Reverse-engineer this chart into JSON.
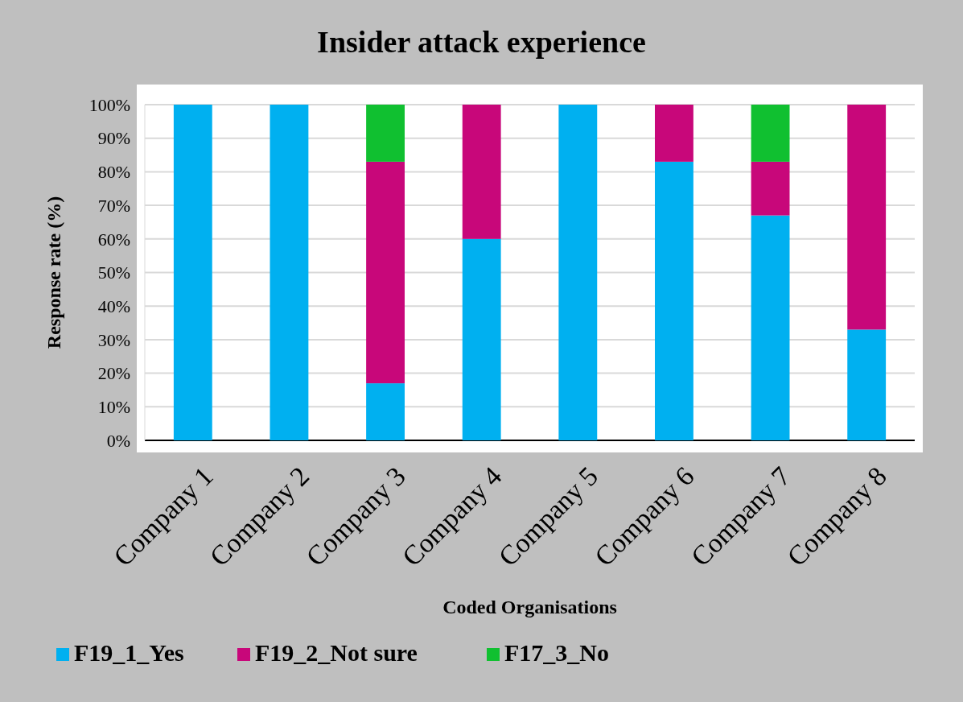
{
  "chart_data": {
    "type": "bar",
    "title": "Insider attack experience",
    "xlabel": "Coded Organisations",
    "ylabel": "Response rate (%)",
    "categories": [
      "Company 1",
      "Company 2",
      "Company 3",
      "Company 4",
      "Company 5",
      "Company 6",
      "Company 7",
      "Company 8"
    ],
    "stacked": true,
    "series": [
      {
        "name": "F19_1_Yes",
        "color": "#00b0f0",
        "values": [
          100,
          100,
          17,
          60,
          100,
          83,
          67,
          33
        ]
      },
      {
        "name": "F19_2_Not sure",
        "color": "#c8077a",
        "values": [
          0,
          0,
          66,
          40,
          0,
          17,
          16,
          67
        ]
      },
      {
        "name": "F17_3_No",
        "color": "#10c030",
        "values": [
          0,
          0,
          17,
          0,
          0,
          0,
          17,
          0
        ]
      }
    ],
    "ylim": [
      0,
      100
    ],
    "yticks": [
      {
        "value": 0,
        "label": "0%"
      },
      {
        "value": 10,
        "label": "10%"
      },
      {
        "value": 20,
        "label": "20%"
      },
      {
        "value": 30,
        "label": "30%"
      },
      {
        "value": 40,
        "label": "40%"
      },
      {
        "value": 50,
        "label": "50%"
      },
      {
        "value": 60,
        "label": "60%"
      },
      {
        "value": 70,
        "label": "70%"
      },
      {
        "value": 80,
        "label": "80%"
      },
      {
        "value": 90,
        "label": "90%"
      },
      {
        "value": 100,
        "label": "100%"
      }
    ],
    "grid": "y",
    "legend": "bottom left"
  }
}
